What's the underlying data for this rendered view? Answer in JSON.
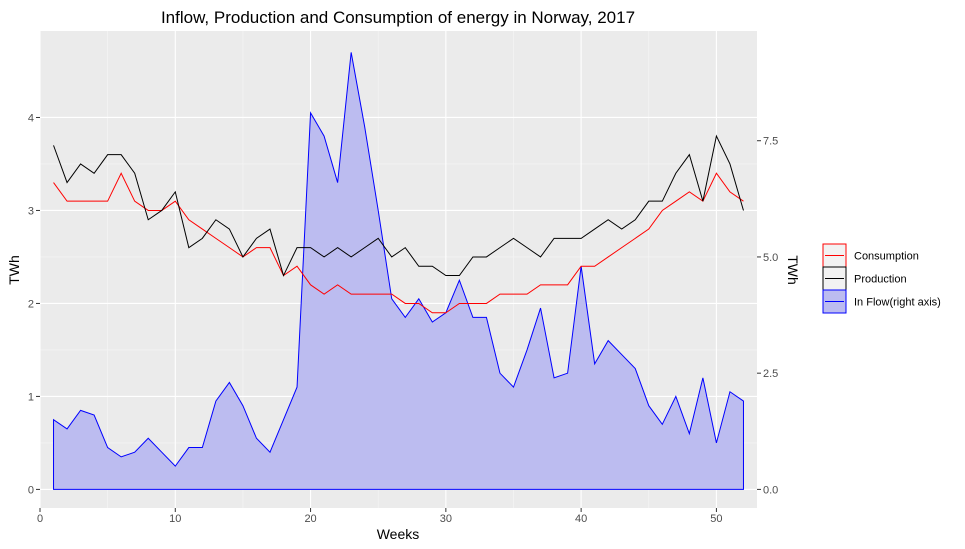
{
  "chart_data": {
    "type": "line",
    "title": "Inflow, Production and Consumption of energy in Norway, 2017",
    "xlabel": "Weeks",
    "ylabel": "TWh",
    "ylabel_right": "TWh",
    "xlim": [
      0,
      53
    ],
    "ylim": [
      -0.2,
      4.93
    ],
    "ylim_right": [
      -0.4,
      9.86
    ],
    "x_ticks": [
      0,
      10,
      20,
      30,
      40,
      50
    ],
    "y_ticks": [
      0,
      1,
      2,
      3,
      4
    ],
    "y_ticks_right": [
      "0.0",
      "2.5",
      "5.0",
      "7.5"
    ],
    "y_ticks_right_values": [
      0,
      2.5,
      5.0,
      7.5
    ],
    "grid": true,
    "legend_position": "right",
    "x": [
      1,
      2,
      3,
      4,
      5,
      6,
      7,
      8,
      9,
      10,
      11,
      12,
      13,
      14,
      15,
      16,
      17,
      18,
      19,
      20,
      21,
      22,
      23,
      24,
      25,
      26,
      27,
      28,
      29,
      30,
      31,
      32,
      33,
      34,
      35,
      36,
      37,
      38,
      39,
      40,
      41,
      42,
      43,
      44,
      45,
      46,
      47,
      48,
      49,
      50,
      51,
      52
    ],
    "series": [
      {
        "name": "Consumption",
        "color": "#ff0000",
        "axis": "left",
        "kind": "line",
        "values": [
          3.3,
          3.1,
          3.1,
          3.1,
          3.1,
          3.4,
          3.1,
          3.0,
          3.0,
          3.1,
          2.9,
          2.8,
          2.7,
          2.6,
          2.5,
          2.6,
          2.6,
          2.3,
          2.4,
          2.2,
          2.1,
          2.2,
          2.1,
          2.1,
          2.1,
          2.1,
          2.0,
          2.0,
          1.9,
          1.9,
          2.0,
          2.0,
          2.0,
          2.1,
          2.1,
          2.1,
          2.2,
          2.2,
          2.2,
          2.4,
          2.4,
          2.5,
          2.6,
          2.7,
          2.8,
          3.0,
          3.1,
          3.2,
          3.1,
          3.4,
          3.2,
          3.1
        ]
      },
      {
        "name": "Production",
        "color": "#000000",
        "axis": "left",
        "kind": "line",
        "values": [
          3.7,
          3.3,
          3.5,
          3.4,
          3.6,
          3.6,
          3.4,
          2.9,
          3.0,
          3.2,
          2.6,
          2.7,
          2.9,
          2.8,
          2.5,
          2.7,
          2.8,
          2.3,
          2.6,
          2.6,
          2.5,
          2.6,
          2.5,
          2.6,
          2.7,
          2.5,
          2.6,
          2.4,
          2.4,
          2.3,
          2.3,
          2.5,
          2.5,
          2.6,
          2.7,
          2.6,
          2.5,
          2.7,
          2.7,
          2.7,
          2.8,
          2.9,
          2.8,
          2.9,
          3.1,
          3.1,
          3.4,
          3.6,
          3.1,
          3.8,
          3.5,
          3.0
        ]
      },
      {
        "name": "In Flow(right axis)",
        "color": "#0000ff",
        "fill": "#bcbcf0",
        "axis": "right",
        "kind": "area",
        "values": [
          1.5,
          1.3,
          1.7,
          1.6,
          0.9,
          0.7,
          0.8,
          1.1,
          0.8,
          0.5,
          0.9,
          0.9,
          1.9,
          2.3,
          1.8,
          1.1,
          0.8,
          1.5,
          2.2,
          8.1,
          7.6,
          6.6,
          9.4,
          7.8,
          6.0,
          4.1,
          3.7,
          4.1,
          3.6,
          3.8,
          4.5,
          3.7,
          3.7,
          2.5,
          2.2,
          3.0,
          3.9,
          2.4,
          2.5,
          4.8,
          2.7,
          3.2,
          2.9,
          2.6,
          1.8,
          1.4,
          2.0,
          1.2,
          2.4,
          1.0,
          2.1,
          1.9
        ]
      }
    ]
  }
}
